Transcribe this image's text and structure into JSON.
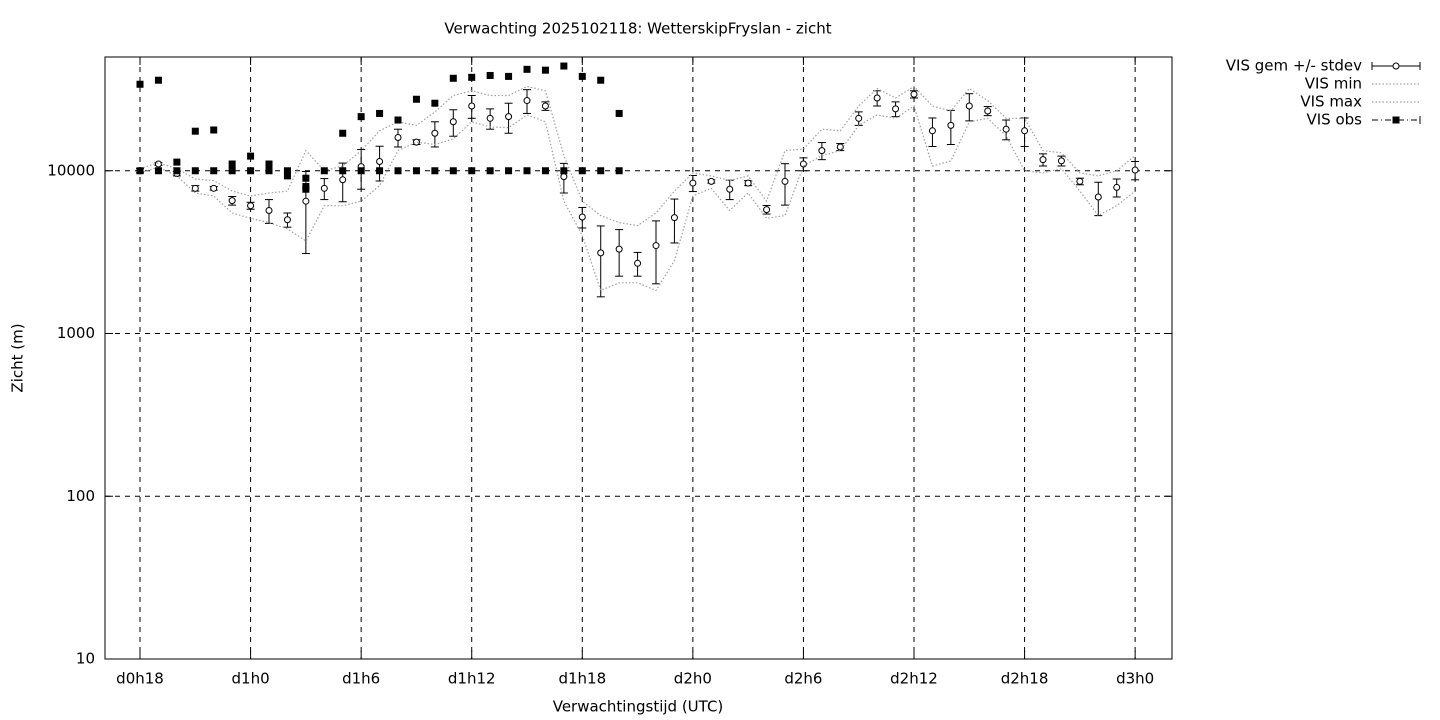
{
  "chart_data": {
    "type": "line",
    "title": "Verwachting 2025102118: WetterskipFryslan - zicht",
    "x_label": "Verwachtingstijd (UTC)",
    "y_label": "Zicht (m)",
    "log_y": true,
    "grid": true,
    "legend": "outside-top-right",
    "xlim": [
      16.1,
      74
    ],
    "ylim": [
      10,
      50000
    ],
    "xticks": [
      {
        "value": 18,
        "label": "d0h18"
      },
      {
        "value": 24,
        "label": "d1h0"
      },
      {
        "value": 30,
        "label": "d1h6"
      },
      {
        "value": 36,
        "label": "d1h12"
      },
      {
        "value": 42,
        "label": "d1h18"
      },
      {
        "value": 48,
        "label": "d2h0"
      },
      {
        "value": 54,
        "label": "d2h6"
      },
      {
        "value": 60,
        "label": "d2h12"
      },
      {
        "value": 66,
        "label": "d2h18"
      },
      {
        "value": 72,
        "label": "d3h0"
      }
    ],
    "yticks": [
      10,
      100,
      1000,
      10000
    ],
    "series": [
      {
        "name": "VIS gem +/- stdev",
        "type": "errorbar",
        "color": "#000000",
        "x": [
          18,
          19,
          20,
          21,
          22,
          23,
          24,
          25,
          26,
          27,
          28,
          29,
          30,
          31,
          32,
          33,
          34,
          35,
          36,
          37,
          38,
          39,
          40,
          41,
          42,
          43,
          44,
          45,
          46,
          47,
          48,
          49,
          50,
          51,
          52,
          53,
          54,
          55,
          56,
          57,
          58,
          59,
          60,
          61,
          62,
          63,
          64,
          65,
          66,
          67,
          68,
          69,
          70,
          71,
          72
        ],
        "values": [
          10000,
          11000,
          9600,
          7800,
          7800,
          6550,
          6100,
          5700,
          5000,
          6500,
          7800,
          8800,
          10600,
          11400,
          16000,
          15000,
          17000,
          20000,
          25000,
          21000,
          21500,
          27000,
          25000,
          9200,
          5200,
          3130,
          3300,
          2700,
          3470,
          5150,
          8400,
          8600,
          7700,
          8400,
          5770,
          8600,
          11000,
          13300,
          14000,
          21000,
          28000,
          24000,
          29500,
          17600,
          19000,
          25000,
          23300,
          18000,
          17600,
          11700,
          11500,
          8600,
          6900,
          7900,
          10100
        ],
        "errors": [
          300,
          200,
          300,
          300,
          200,
          400,
          300,
          950,
          500,
          3400,
          1150,
          2350,
          2900,
          2750,
          2000,
          500,
          3000,
          3700,
          4000,
          3000,
          4500,
          4500,
          1500,
          1900,
          750,
          1450,
          1050,
          450,
          1450,
          1550,
          950,
          200,
          1050,
          300,
          350,
          2450,
          1000,
          1600,
          700,
          2000,
          3000,
          2500,
          1500,
          3500,
          4500,
          4750,
          1500,
          2500,
          3500,
          1000,
          800,
          400,
          1600,
          1000,
          1300
        ]
      },
      {
        "name": "VIS min",
        "type": "line",
        "color": "#a0a0a0",
        "line_style": "dotted",
        "x": [
          18,
          19,
          20,
          21,
          22,
          23,
          24,
          25,
          26,
          27,
          28,
          29,
          30,
          31,
          32,
          33,
          34,
          35,
          36,
          37,
          38,
          39,
          40,
          41,
          42,
          43,
          44,
          45,
          46,
          47,
          48,
          49,
          50,
          51,
          52,
          53,
          54,
          55,
          56,
          57,
          58,
          59,
          60,
          61,
          62,
          63,
          64,
          65,
          66,
          67,
          68,
          69,
          70,
          71,
          72
        ],
        "values": [
          9700,
          10500,
          9300,
          7300,
          7000,
          5500,
          5100,
          4800,
          4400,
          3700,
          6100,
          6100,
          6500,
          8100,
          13300,
          15000,
          14500,
          15700,
          20000,
          18600,
          18400,
          22000,
          20000,
          6500,
          4000,
          1840,
          2050,
          2050,
          1840,
          2800,
          7000,
          7800,
          5700,
          7300,
          5100,
          5300,
          10700,
          12400,
          13300,
          19000,
          22000,
          21000,
          25000,
          10700,
          11500,
          20000,
          21000,
          16400,
          10000,
          9700,
          10300,
          7500,
          5300,
          6100,
          7500
        ]
      },
      {
        "name": "VIS max",
        "type": "line",
        "color": "#a0a0a0",
        "line_style": "dotted",
        "x": [
          18,
          19,
          20,
          21,
          22,
          23,
          24,
          25,
          26,
          27,
          28,
          29,
          30,
          31,
          32,
          33,
          34,
          35,
          36,
          37,
          38,
          39,
          40,
          41,
          42,
          43,
          44,
          45,
          46,
          47,
          48,
          49,
          50,
          51,
          52,
          53,
          54,
          55,
          56,
          57,
          58,
          59,
          60,
          61,
          62,
          63,
          64,
          65,
          66,
          67,
          68,
          69,
          70,
          71,
          72
        ],
        "values": [
          10300,
          11200,
          10300,
          8900,
          8700,
          7500,
          7000,
          7300,
          7500,
          13300,
          10000,
          10700,
          13300,
          17600,
          20000,
          19000,
          23000,
          29000,
          31000,
          29000,
          29000,
          33000,
          31000,
          12400,
          6500,
          5300,
          4800,
          4600,
          5500,
          7500,
          9700,
          9300,
          8700,
          9300,
          6500,
          13300,
          13600,
          18000,
          17600,
          25000,
          32000,
          28000,
          33000,
          25000,
          23300,
          32000,
          27000,
          21000,
          21000,
          13300,
          12900,
          9700,
          9300,
          10000,
          12400
        ]
      },
      {
        "name": "VIS obs",
        "type": "scatter",
        "color": "#000000",
        "x": [
          18,
          18,
          19,
          19,
          20,
          20,
          21,
          21,
          22,
          22,
          23,
          23,
          24,
          24,
          25,
          25,
          26,
          26,
          27,
          27,
          27,
          28,
          29,
          29,
          30,
          30,
          31,
          31,
          32,
          32,
          33,
          33,
          34,
          34,
          35,
          35,
          36,
          36,
          37,
          37,
          38,
          38,
          39,
          39,
          40,
          40,
          41,
          41,
          42,
          42,
          43,
          43,
          44,
          44
        ],
        "values": [
          10000,
          34000,
          10000,
          36000,
          10000,
          11300,
          10000,
          17500,
          10000,
          17800,
          10000,
          11000,
          10000,
          12300,
          10000,
          11000,
          10000,
          9300,
          9000,
          8000,
          7700,
          10000,
          10000,
          17000,
          10000,
          21500,
          10000,
          22500,
          10000,
          20500,
          10000,
          27500,
          10000,
          26000,
          10000,
          37000,
          10000,
          37500,
          10000,
          38500,
          10000,
          38000,
          10000,
          42000,
          10000,
          41500,
          10000,
          44000,
          10000,
          38000,
          10000,
          36000,
          10000,
          22500
        ]
      }
    ]
  }
}
